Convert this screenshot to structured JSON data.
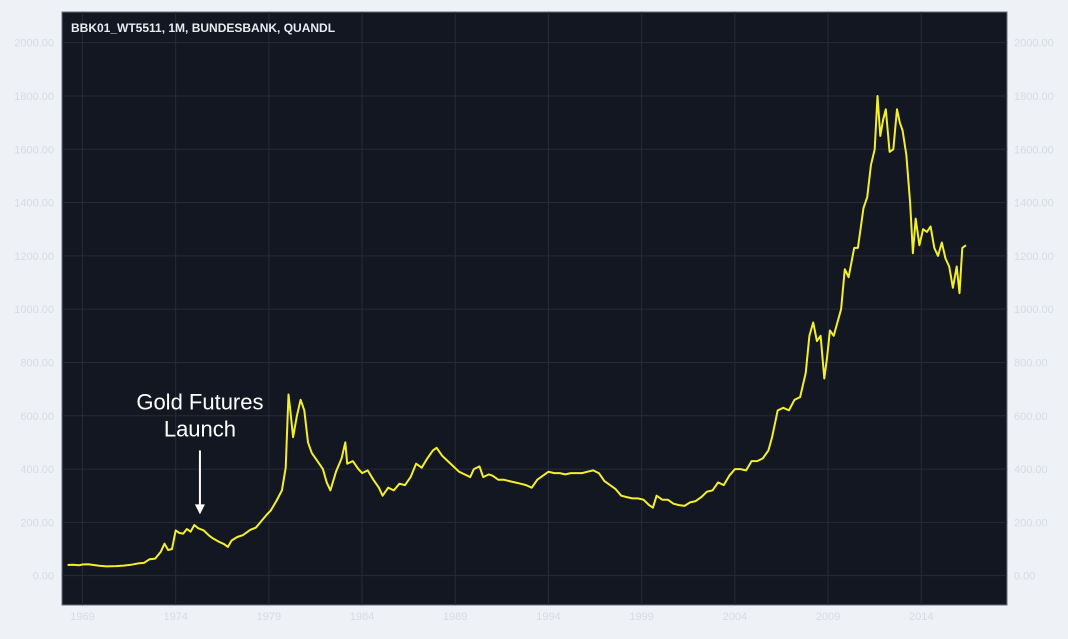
{
  "chart_data": {
    "type": "line",
    "title": "BBK01_WT5511, 1M, BUNDESBANK, QUANDL",
    "xlabel": "",
    "ylabel": "",
    "xlim": [
      1967.9,
      2018.6
    ],
    "ylim": [
      -110,
      2115
    ],
    "x_ticks": [
      1969,
      1974,
      1979,
      1984,
      1989,
      1994,
      1999,
      2004,
      2009,
      2014
    ],
    "y_ticks": [
      0,
      200,
      400,
      600,
      800,
      1000,
      1200,
      1400,
      1600,
      1800,
      2000
    ],
    "y_tick_labels": [
      "0.00",
      "200.00",
      "400.00",
      "600.00",
      "800.00",
      "1000.00",
      "1200.00",
      "1400.00",
      "1600.00",
      "1800.00",
      "2000.00"
    ],
    "grid": true,
    "y_axis_sides": [
      "left",
      "right"
    ],
    "series": [
      {
        "color": "#f3ef2a",
        "points": [
          [
            1968.2,
            40
          ],
          [
            1968.5,
            41
          ],
          [
            1968.8,
            39
          ],
          [
            1969.0,
            42
          ],
          [
            1969.3,
            43
          ],
          [
            1969.6,
            40
          ],
          [
            1969.9,
            37
          ],
          [
            1970.3,
            35
          ],
          [
            1970.8,
            36
          ],
          [
            1971.2,
            38
          ],
          [
            1971.6,
            41
          ],
          [
            1972.0,
            46
          ],
          [
            1972.3,
            48
          ],
          [
            1972.6,
            62
          ],
          [
            1972.9,
            64
          ],
          [
            1973.2,
            90
          ],
          [
            1973.4,
            120
          ],
          [
            1973.6,
            96
          ],
          [
            1973.8,
            100
          ],
          [
            1974.0,
            170
          ],
          [
            1974.2,
            160
          ],
          [
            1974.4,
            158
          ],
          [
            1974.6,
            175
          ],
          [
            1974.8,
            165
          ],
          [
            1975.0,
            190
          ],
          [
            1975.2,
            178
          ],
          [
            1975.5,
            170
          ],
          [
            1975.8,
            150
          ],
          [
            1976.0,
            140
          ],
          [
            1976.3,
            128
          ],
          [
            1976.6,
            118
          ],
          [
            1976.8,
            108
          ],
          [
            1977.0,
            132
          ],
          [
            1977.3,
            145
          ],
          [
            1977.6,
            152
          ],
          [
            1978.0,
            172
          ],
          [
            1978.3,
            180
          ],
          [
            1978.6,
            205
          ],
          [
            1978.9,
            230
          ],
          [
            1979.1,
            245
          ],
          [
            1979.4,
            280
          ],
          [
            1979.7,
            320
          ],
          [
            1979.9,
            405
          ],
          [
            1980.05,
            680
          ],
          [
            1980.15,
            620
          ],
          [
            1980.3,
            520
          ],
          [
            1980.5,
            600
          ],
          [
            1980.7,
            660
          ],
          [
            1980.9,
            620
          ],
          [
            1981.1,
            500
          ],
          [
            1981.3,
            460
          ],
          [
            1981.6,
            430
          ],
          [
            1981.9,
            400
          ],
          [
            1982.1,
            350
          ],
          [
            1982.3,
            320
          ],
          [
            1982.6,
            390
          ],
          [
            1982.9,
            440
          ],
          [
            1983.1,
            500
          ],
          [
            1983.2,
            420
          ],
          [
            1983.5,
            430
          ],
          [
            1983.8,
            400
          ],
          [
            1984.0,
            385
          ],
          [
            1984.3,
            395
          ],
          [
            1984.6,
            360
          ],
          [
            1984.9,
            330
          ],
          [
            1985.1,
            300
          ],
          [
            1985.4,
            330
          ],
          [
            1985.7,
            320
          ],
          [
            1986.0,
            345
          ],
          [
            1986.3,
            340
          ],
          [
            1986.6,
            370
          ],
          [
            1986.9,
            420
          ],
          [
            1987.2,
            405
          ],
          [
            1987.5,
            440
          ],
          [
            1987.8,
            470
          ],
          [
            1988.0,
            480
          ],
          [
            1988.3,
            450
          ],
          [
            1988.6,
            430
          ],
          [
            1988.9,
            410
          ],
          [
            1989.2,
            390
          ],
          [
            1989.5,
            380
          ],
          [
            1989.8,
            370
          ],
          [
            1990.0,
            400
          ],
          [
            1990.3,
            410
          ],
          [
            1990.5,
            370
          ],
          [
            1990.8,
            380
          ],
          [
            1991.0,
            375
          ],
          [
            1991.3,
            360
          ],
          [
            1991.6,
            360
          ],
          [
            1991.9,
            355
          ],
          [
            1992.2,
            350
          ],
          [
            1992.5,
            345
          ],
          [
            1992.8,
            340
          ],
          [
            1993.1,
            330
          ],
          [
            1993.4,
            360
          ],
          [
            1993.7,
            375
          ],
          [
            1994.0,
            390
          ],
          [
            1994.3,
            385
          ],
          [
            1994.6,
            385
          ],
          [
            1994.9,
            380
          ],
          [
            1995.2,
            385
          ],
          [
            1995.5,
            385
          ],
          [
            1995.8,
            385
          ],
          [
            1996.1,
            390
          ],
          [
            1996.4,
            395
          ],
          [
            1996.7,
            385
          ],
          [
            1997.0,
            355
          ],
          [
            1997.3,
            340
          ],
          [
            1997.6,
            325
          ],
          [
            1997.9,
            300
          ],
          [
            1998.2,
            295
          ],
          [
            1998.5,
            290
          ],
          [
            1998.8,
            290
          ],
          [
            1999.1,
            285
          ],
          [
            1999.4,
            265
          ],
          [
            1999.6,
            255
          ],
          [
            1999.8,
            300
          ],
          [
            2000.1,
            285
          ],
          [
            2000.4,
            285
          ],
          [
            2000.7,
            270
          ],
          [
            2001.0,
            265
          ],
          [
            2001.3,
            262
          ],
          [
            2001.6,
            275
          ],
          [
            2001.9,
            280
          ],
          [
            2002.2,
            295
          ],
          [
            2002.5,
            315
          ],
          [
            2002.8,
            320
          ],
          [
            2003.1,
            350
          ],
          [
            2003.4,
            340
          ],
          [
            2003.7,
            375
          ],
          [
            2004.0,
            400
          ],
          [
            2004.3,
            400
          ],
          [
            2004.6,
            395
          ],
          [
            2004.9,
            430
          ],
          [
            2005.2,
            430
          ],
          [
            2005.5,
            440
          ],
          [
            2005.8,
            470
          ],
          [
            2006.0,
            520
          ],
          [
            2006.3,
            620
          ],
          [
            2006.6,
            630
          ],
          [
            2006.9,
            620
          ],
          [
            2007.2,
            660
          ],
          [
            2007.5,
            670
          ],
          [
            2007.8,
            760
          ],
          [
            2008.0,
            900
          ],
          [
            2008.2,
            950
          ],
          [
            2008.4,
            880
          ],
          [
            2008.6,
            900
          ],
          [
            2008.8,
            740
          ],
          [
            2008.95,
            820
          ],
          [
            2009.1,
            920
          ],
          [
            2009.3,
            900
          ],
          [
            2009.5,
            950
          ],
          [
            2009.7,
            1000
          ],
          [
            2009.9,
            1150
          ],
          [
            2010.1,
            1120
          ],
          [
            2010.4,
            1230
          ],
          [
            2010.6,
            1230
          ],
          [
            2010.9,
            1380
          ],
          [
            2011.1,
            1420
          ],
          [
            2011.3,
            1540
          ],
          [
            2011.5,
            1600
          ],
          [
            2011.65,
            1800
          ],
          [
            2011.8,
            1650
          ],
          [
            2011.95,
            1710
          ],
          [
            2012.1,
            1750
          ],
          [
            2012.3,
            1590
          ],
          [
            2012.5,
            1600
          ],
          [
            2012.7,
            1750
          ],
          [
            2012.85,
            1700
          ],
          [
            2013.0,
            1670
          ],
          [
            2013.2,
            1580
          ],
          [
            2013.4,
            1400
          ],
          [
            2013.55,
            1210
          ],
          [
            2013.7,
            1340
          ],
          [
            2013.9,
            1240
          ],
          [
            2014.1,
            1300
          ],
          [
            2014.3,
            1290
          ],
          [
            2014.5,
            1310
          ],
          [
            2014.7,
            1230
          ],
          [
            2014.9,
            1200
          ],
          [
            2015.1,
            1250
          ],
          [
            2015.3,
            1190
          ],
          [
            2015.5,
            1160
          ],
          [
            2015.7,
            1080
          ],
          [
            2015.9,
            1160
          ],
          [
            2016.05,
            1060
          ],
          [
            2016.2,
            1230
          ],
          [
            2016.4,
            1240
          ]
        ]
      }
    ],
    "annotations": [
      {
        "text_lines": [
          "Gold Futures",
          "Launch"
        ],
        "arrow_x": 1975.3,
        "arrow_top": 470,
        "arrow_bottom": 230
      }
    ]
  }
}
